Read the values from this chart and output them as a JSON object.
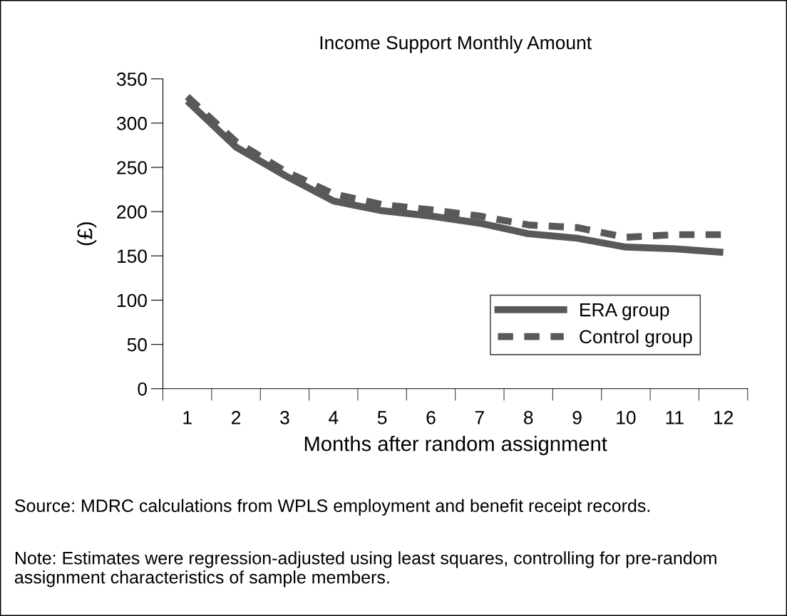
{
  "chart_data": {
    "type": "line",
    "title": "Income Support Monthly Amount",
    "xlabel": "Months after random assignment",
    "ylabel": "(£)",
    "categories": [
      "1",
      "2",
      "3",
      "4",
      "5",
      "6",
      "7",
      "8",
      "9",
      "10",
      "11",
      "12"
    ],
    "series": [
      {
        "name": "ERA group",
        "color": "#595959",
        "line_style": "solid",
        "values": [
          325,
          273,
          241,
          212,
          201,
          195,
          187,
          175,
          170,
          160,
          158,
          154
        ]
      },
      {
        "name": "Control group",
        "color": "#595959",
        "line_style": "dashed",
        "values": [
          330,
          279,
          246,
          220,
          208,
          202,
          195,
          185,
          182,
          171,
          174,
          174
        ]
      }
    ],
    "ylim": [
      0,
      350
    ],
    "yticks": [
      0,
      50,
      100,
      150,
      200,
      250,
      300,
      350
    ],
    "grid": false,
    "legend": "bottom right",
    "marker": "none",
    "annotations": [
      "Source: MDRC calculations from WPLS employment and benefit receipt records.",
      "Note: Estimates were regression-adjusted using least squares, controlling for pre-random assignment characteristics of sample members."
    ]
  }
}
